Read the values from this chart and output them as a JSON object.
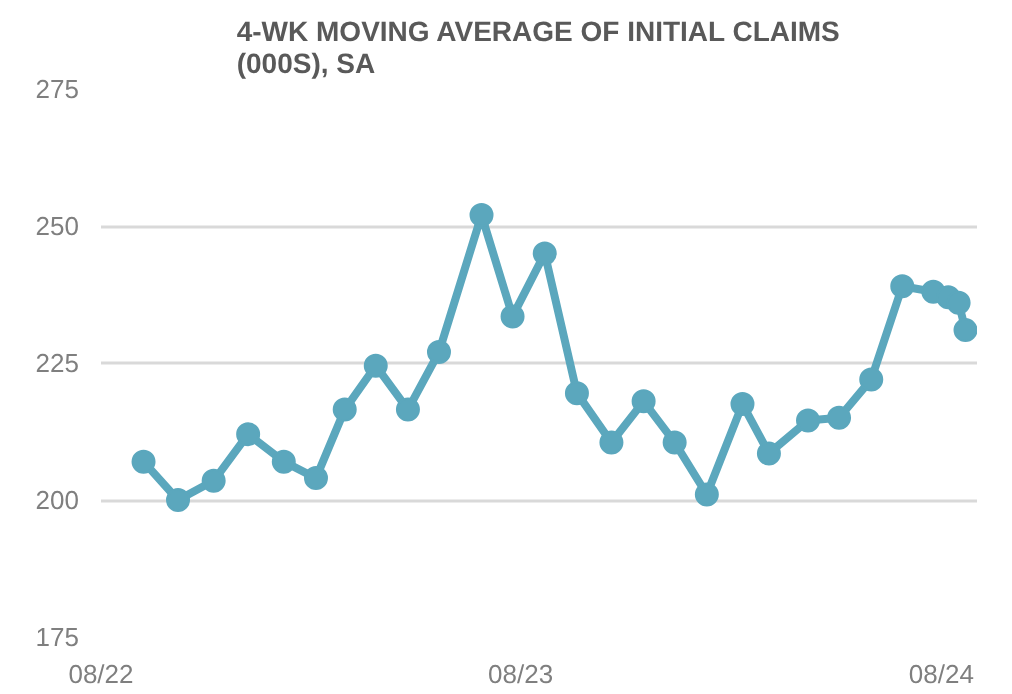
{
  "chart_data": {
    "type": "line",
    "title": "4-WK MOVING AVERAGE OF INITIAL CLAIMS (000S), SA",
    "x": [
      "2022-09-07",
      "2022-10-07",
      "2022-11-07",
      "2022-12-07",
      "2023-01-07",
      "2023-02-04",
      "2023-03-01",
      "2023-03-28",
      "2023-04-25",
      "2023-05-22",
      "2023-06-28",
      "2023-07-25",
      "2023-08-22",
      "2023-09-19",
      "2023-10-19",
      "2023-11-16",
      "2023-12-13",
      "2024-01-10",
      "2024-02-10",
      "2024-03-04",
      "2024-04-07",
      "2024-05-04",
      "2024-06-01",
      "2024-06-28",
      "2024-07-25",
      "2024-08-07",
      "2024-08-16",
      "2024-08-22"
    ],
    "series": [
      {
        "color": "#5ba7bd",
        "values": [
          207,
          200,
          203.5,
          212,
          207,
          204,
          216.5,
          224.5,
          216.5,
          227,
          252,
          233.5,
          245,
          219.5,
          210.5,
          218,
          210.5,
          201,
          217.5,
          208.5,
          214.5,
          215,
          222,
          239,
          238,
          237,
          236,
          231
        ]
      }
    ],
    "xlim": [
      "2022-08-01",
      "2024-09-01"
    ],
    "xticks": [
      {
        "value": "2022-08-01",
        "label": "08/22"
      },
      {
        "value": "2023-08-01",
        "label": "08/23"
      },
      {
        "value": "2024-08-01",
        "label": "08/24"
      }
    ],
    "ylim": [
      175,
      275
    ],
    "yticks": [
      175,
      200,
      225,
      250,
      275
    ],
    "grid": "y",
    "marker": "circle",
    "line_style": "solid"
  }
}
